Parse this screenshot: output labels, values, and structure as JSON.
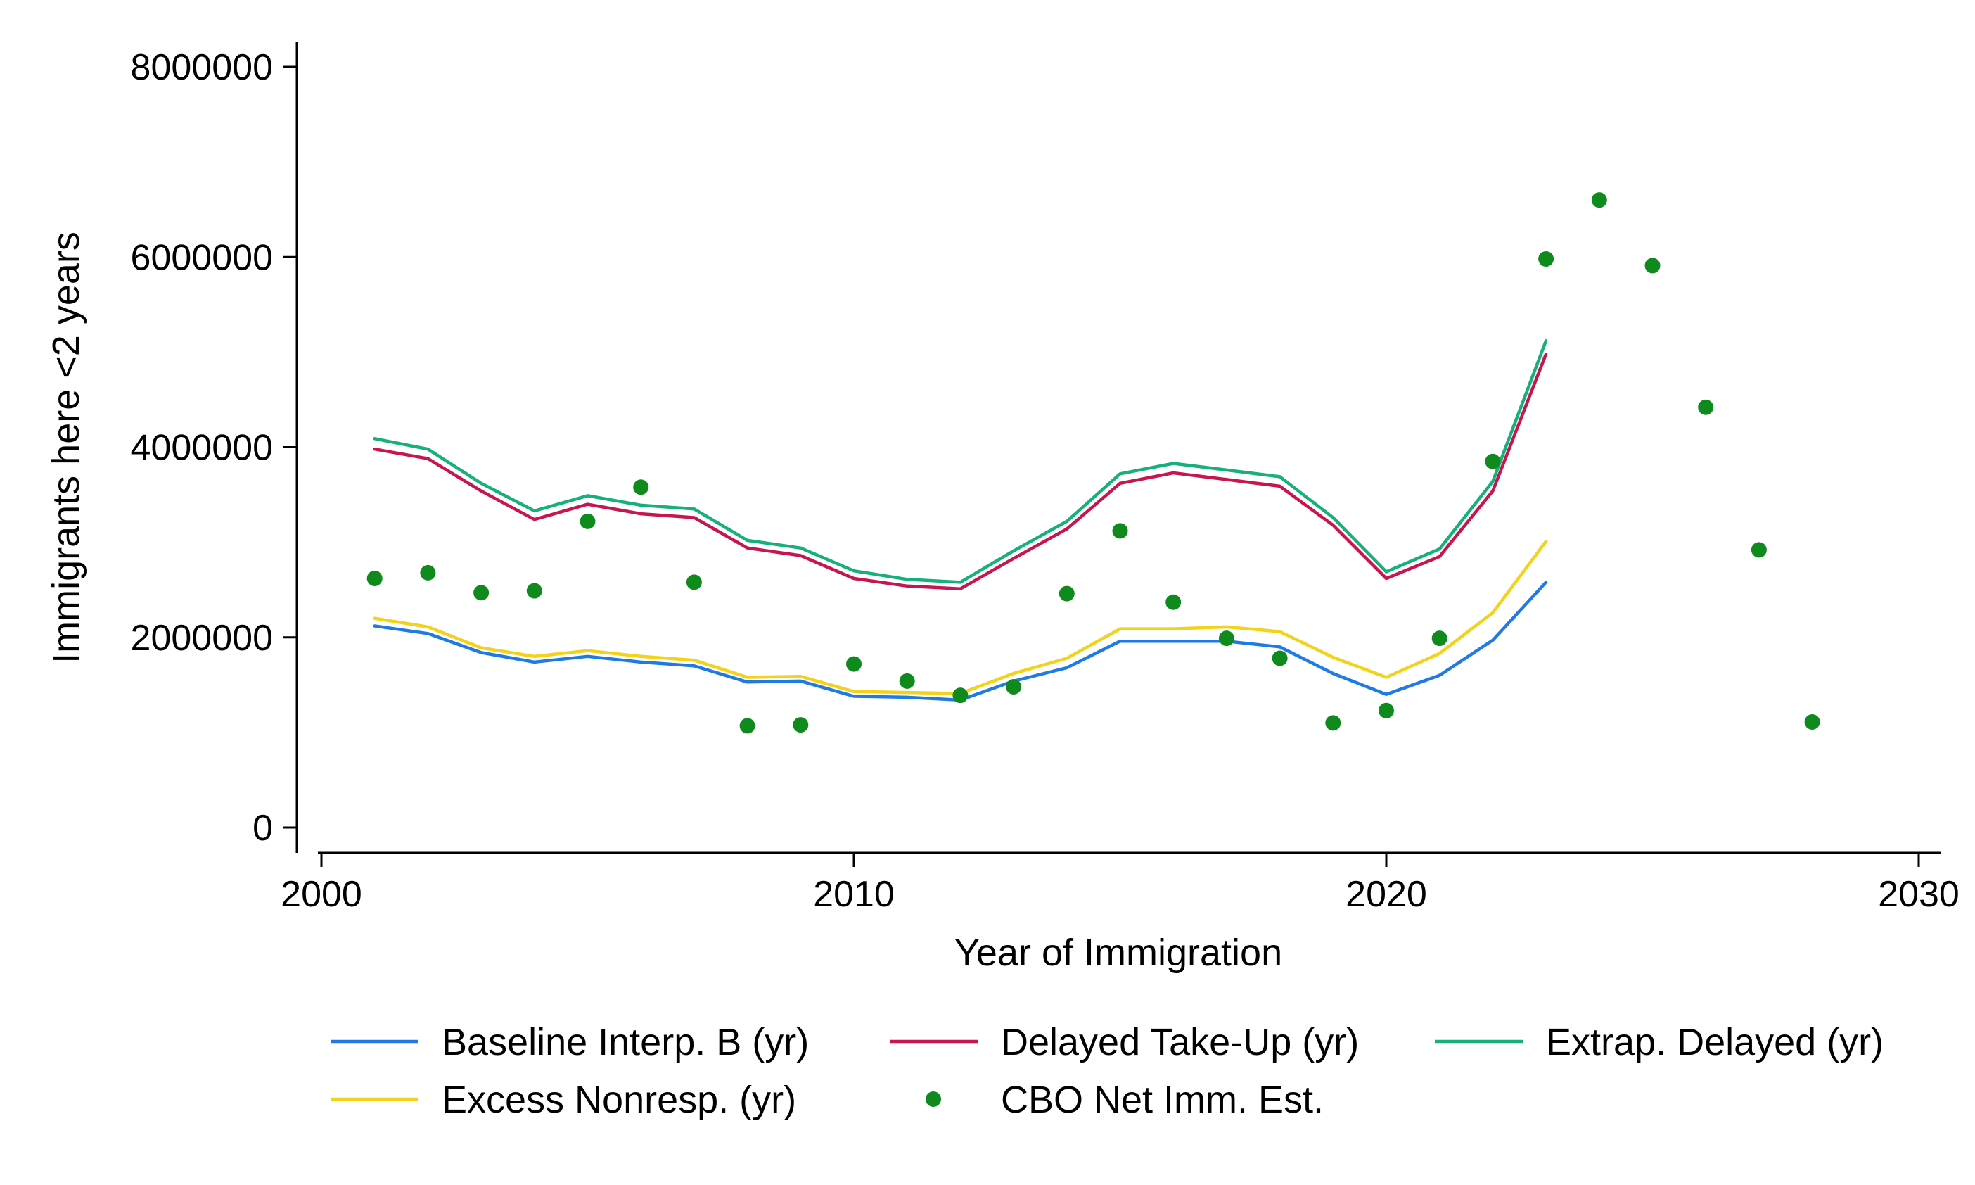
{
  "chart_data": {
    "type": "line",
    "title": "",
    "xlabel": "Year of Immigration",
    "ylabel": "Immigrants here <2 years",
    "xlim": [
      2000,
      2030
    ],
    "ylim": [
      0,
      8000000
    ],
    "x_ticks": [
      2000,
      2010,
      2020,
      2030
    ],
    "y_ticks": [
      0,
      2000000,
      4000000,
      6000000,
      8000000
    ],
    "x_tick_labels": [
      "2000",
      "2010",
      "2020",
      "2030"
    ],
    "y_tick_labels": [
      "0",
      "2000000",
      "4000000",
      "6000000",
      "8000000"
    ],
    "grid": false,
    "legend_position": "bottom",
    "x": [
      2001,
      2002,
      2003,
      2004,
      2005,
      2006,
      2007,
      2008,
      2009,
      2010,
      2011,
      2012,
      2013,
      2014,
      2015,
      2016,
      2017,
      2018,
      2019,
      2020,
      2021,
      2022,
      2023
    ],
    "series": [
      {
        "name": "Baseline Interp. B (yr)",
        "type": "line",
        "color": "#1f7be3",
        "values": [
          2120000,
          2040000,
          1840000,
          1740000,
          1800000,
          1740000,
          1700000,
          1530000,
          1540000,
          1380000,
          1370000,
          1340000,
          1540000,
          1680000,
          1960000,
          1960000,
          1960000,
          1900000,
          1620000,
          1400000,
          1600000,
          1970000,
          2580000
        ]
      },
      {
        "name": "Delayed Take-Up (yr)",
        "type": "line",
        "color": "#c8154f",
        "values": [
          3980000,
          3880000,
          3540000,
          3240000,
          3400000,
          3300000,
          3260000,
          2940000,
          2860000,
          2620000,
          2540000,
          2510000,
          2830000,
          3140000,
          3620000,
          3730000,
          3660000,
          3590000,
          3180000,
          2620000,
          2850000,
          3540000,
          4980000
        ]
      },
      {
        "name": "Extrap. Delayed (yr)",
        "type": "line",
        "color": "#17b07d",
        "values": [
          4090000,
          3980000,
          3620000,
          3330000,
          3490000,
          3390000,
          3350000,
          3020000,
          2940000,
          2700000,
          2610000,
          2580000,
          2910000,
          3220000,
          3720000,
          3830000,
          3760000,
          3690000,
          3260000,
          2690000,
          2930000,
          3640000,
          5120000
        ]
      },
      {
        "name": "Excess Nonresp. (yr)",
        "type": "line",
        "color": "#f2d21a",
        "values": [
          2200000,
          2110000,
          1890000,
          1800000,
          1860000,
          1800000,
          1760000,
          1580000,
          1590000,
          1430000,
          1420000,
          1410000,
          1620000,
          1780000,
          2090000,
          2090000,
          2110000,
          2060000,
          1790000,
          1580000,
          1830000,
          2260000,
          3010000
        ]
      },
      {
        "name": "CBO Net Imm. Est.",
        "type": "scatter",
        "color": "#0f8a1d",
        "x": [
          2001,
          2002,
          2003,
          2004,
          2005,
          2006,
          2007,
          2008,
          2009,
          2010,
          2011,
          2012,
          2013,
          2014,
          2015,
          2016,
          2017,
          2018,
          2019,
          2020,
          2021,
          2022,
          2023,
          2024,
          2025,
          2026,
          2027,
          2028
        ],
        "values": [
          2620000,
          2680000,
          2470000,
          2490000,
          3220000,
          3580000,
          2580000,
          1070000,
          1080000,
          1720000,
          1540000,
          1390000,
          1480000,
          2460000,
          3120000,
          2370000,
          1990000,
          1780000,
          1100000,
          1230000,
          1990000,
          3850000,
          5980000,
          6600000,
          5910000,
          4420000,
          2920000,
          1110000
        ]
      }
    ],
    "legend_order": [
      0,
      1,
      2,
      3,
      4
    ]
  }
}
